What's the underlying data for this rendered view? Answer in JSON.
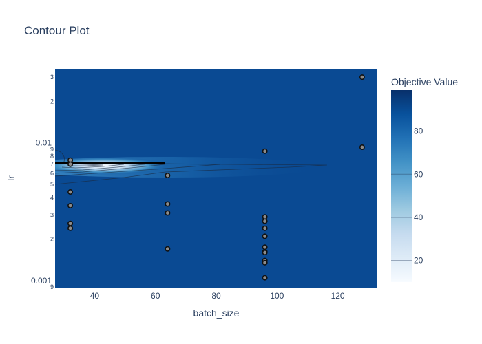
{
  "chart_data": {
    "type": "contour",
    "title": "Contour Plot",
    "xlabel": "batch_size",
    "ylabel": "lr",
    "xlim": [
      27,
      133
    ],
    "ylim": [
      0.00088,
      0.0036
    ],
    "y_scale": "log",
    "x_ticks": [
      40,
      60,
      80,
      100,
      120
    ],
    "y_major_ticks": [
      {
        "value": 0.001,
        "label": "0.001"
      },
      {
        "value": 0.01,
        "label": "0.01"
      }
    ],
    "y_minor_ticks": [
      {
        "value": 0.0009,
        "label": "9"
      },
      {
        "value": 0.002,
        "label": "2"
      },
      {
        "value": 0.003,
        "label": "3"
      },
      {
        "value": 0.004,
        "label": "4"
      },
      {
        "value": 0.005,
        "label": "5"
      },
      {
        "value": 0.006,
        "label": "6"
      },
      {
        "value": 0.007,
        "label": "7"
      },
      {
        "value": 0.008,
        "label": "8"
      },
      {
        "value": 0.009,
        "label": "9"
      },
      {
        "value": 0.02,
        "label": "2"
      },
      {
        "value": 0.03,
        "label": "3"
      }
    ],
    "colorbar": {
      "title": "Objective Value",
      "range": [
        10,
        99
      ],
      "ticks": [
        20,
        40,
        60,
        80
      ],
      "colors": [
        "#f7fbff",
        "#deebf7",
        "#c6dbef",
        "#9ecae1",
        "#6baed6",
        "#4292c6",
        "#2171b5",
        "#08519c",
        "#08306b"
      ]
    },
    "contour_low_region": {
      "batch_size_center": 35,
      "lr_center": 0.0071
    },
    "points": [
      {
        "x": 128,
        "y": 0.03
      },
      {
        "x": 128,
        "y": 0.0093
      },
      {
        "x": 96,
        "y": 0.0087
      },
      {
        "x": 32,
        "y": 0.0075
      },
      {
        "x": 32,
        "y": 0.007
      },
      {
        "x": 64,
        "y": 0.0058
      },
      {
        "x": 32,
        "y": 0.0044
      },
      {
        "x": 64,
        "y": 0.0036
      },
      {
        "x": 32,
        "y": 0.0035
      },
      {
        "x": 64,
        "y": 0.0031
      },
      {
        "x": 96,
        "y": 0.0029
      },
      {
        "x": 96,
        "y": 0.0027
      },
      {
        "x": 32,
        "y": 0.0026
      },
      {
        "x": 32,
        "y": 0.0024
      },
      {
        "x": 96,
        "y": 0.0024
      },
      {
        "x": 96,
        "y": 0.0021
      },
      {
        "x": 96,
        "y": 0.00175
      },
      {
        "x": 64,
        "y": 0.0017
      },
      {
        "x": 96,
        "y": 0.00162
      },
      {
        "x": 96,
        "y": 0.0016
      },
      {
        "x": 96,
        "y": 0.0014
      },
      {
        "x": 96,
        "y": 0.00135
      },
      {
        "x": 96,
        "y": 0.00105
      }
    ]
  }
}
